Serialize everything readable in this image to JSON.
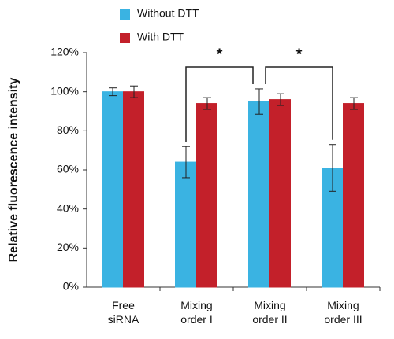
{
  "chart_data": {
    "type": "bar",
    "y_label": "Relative fluorescence intensity",
    "categories": [
      "Free\nsiRNA",
      "Mixing\norder I",
      "Mixing\norder II",
      "Mixing\norder III"
    ],
    "series": [
      {
        "name": "Without DTT",
        "color": "#3ab3e2",
        "values": [
          100,
          64,
          95,
          61
        ],
        "errors": [
          2,
          8,
          6.5,
          12
        ]
      },
      {
        "name": "With DTT",
        "color": "#c3202a",
        "values": [
          100,
          94,
          96,
          94
        ],
        "errors": [
          3,
          3,
          3,
          3
        ]
      }
    ],
    "ylim": [
      0,
      120
    ],
    "yticks": [
      {
        "value": 0,
        "label": "0%"
      },
      {
        "value": 20,
        "label": "20%"
      },
      {
        "value": 40,
        "label": "40%"
      },
      {
        "value": 60,
        "label": "60%"
      },
      {
        "value": 80,
        "label": "80%"
      },
      {
        "value": 100,
        "label": "100%"
      },
      {
        "value": 120,
        "label": "120%"
      }
    ],
    "annotations": [
      "*",
      "*"
    ]
  }
}
